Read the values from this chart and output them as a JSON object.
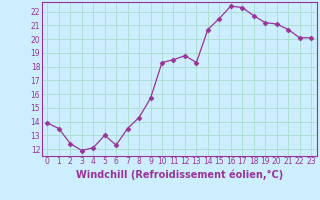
{
  "x": [
    0,
    1,
    2,
    3,
    4,
    5,
    6,
    7,
    8,
    9,
    10,
    11,
    12,
    13,
    14,
    15,
    16,
    17,
    18,
    19,
    20,
    21,
    22,
    23
  ],
  "y": [
    13.9,
    13.5,
    12.4,
    11.9,
    12.1,
    13.0,
    12.3,
    13.5,
    14.3,
    15.7,
    18.3,
    18.5,
    18.8,
    18.3,
    20.7,
    21.5,
    22.4,
    22.3,
    21.7,
    21.2,
    21.1,
    20.7,
    20.1,
    20.1
  ],
  "line_color": "#993399",
  "marker": "D",
  "markersize": 2.5,
  "linewidth": 0.9,
  "xlabel": "Windchill (Refroidissement éolien,°C)",
  "xlabel_color": "#993399",
  "xlabel_fontsize": 7,
  "bg_color": "#cceeff",
  "grid_color": "#aaddcc",
  "tick_label_color": "#993399",
  "ylim": [
    11.5,
    22.7
  ],
  "xlim": [
    -0.5,
    23.5
  ],
  "yticks": [
    12,
    13,
    14,
    15,
    16,
    17,
    18,
    19,
    20,
    21,
    22
  ],
  "xticks": [
    0,
    1,
    2,
    3,
    4,
    5,
    6,
    7,
    8,
    9,
    10,
    11,
    12,
    13,
    14,
    15,
    16,
    17,
    18,
    19,
    20,
    21,
    22,
    23
  ],
  "tick_fontsize": 5.5,
  "spine_color": "#993399"
}
